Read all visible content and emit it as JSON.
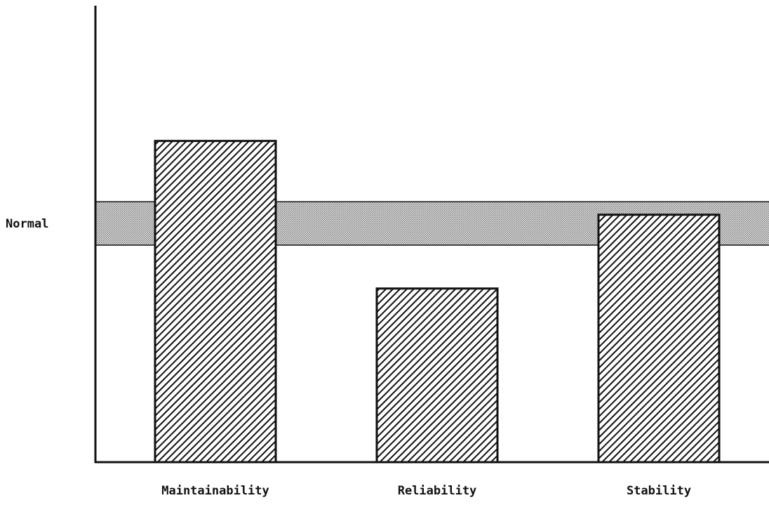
{
  "chart_data": {
    "type": "bar",
    "categories": [
      "Maintainability",
      "Reliability",
      "Stability"
    ],
    "values": [
      74,
      40,
      57
    ],
    "ylim": [
      0,
      100
    ],
    "reference_band": {
      "label": "Normal",
      "low": 50,
      "high": 60
    },
    "grid": false,
    "legend": "none",
    "colors": {
      "bar_stroke": "#111111",
      "bar_hatch": "#111111",
      "band_fill": "#bdbdbd",
      "axis": "#111111"
    }
  }
}
